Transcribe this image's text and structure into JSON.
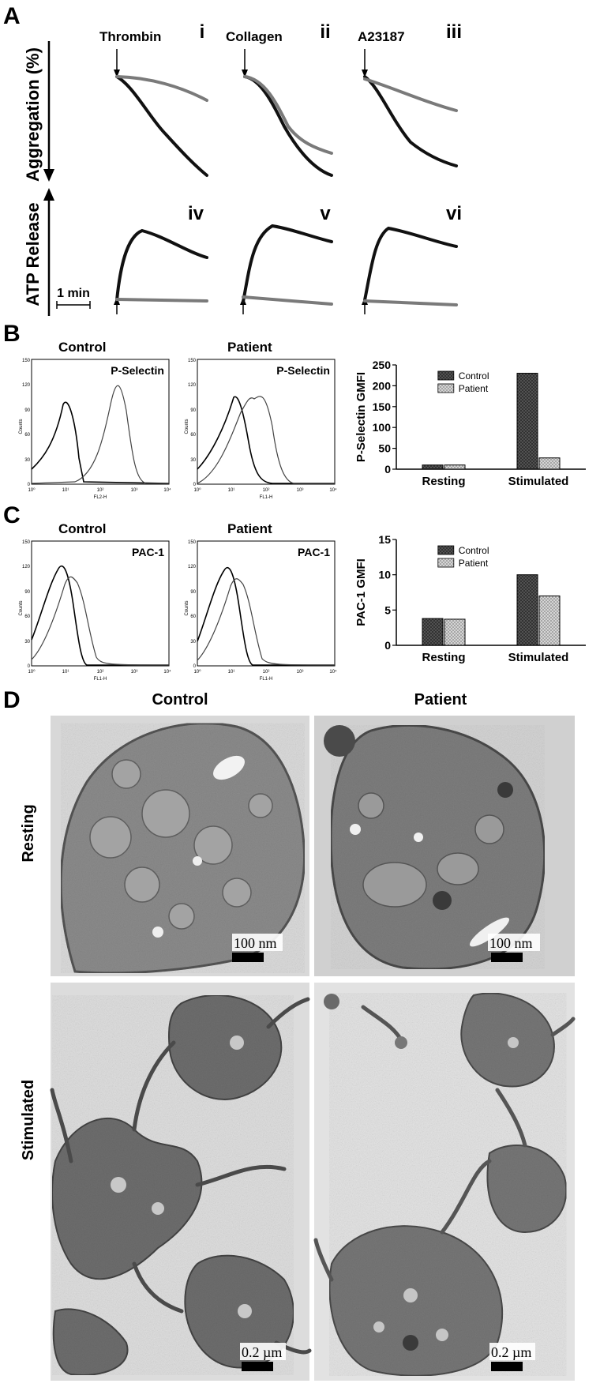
{
  "panel_a": {
    "label": "A",
    "aggregation_axis_label": "Aggregation (%)",
    "atp_axis_label": "ATP Release",
    "scale_label": "1 min",
    "subpanels": [
      {
        "numeral": "i",
        "agonist": "Thrombin"
      },
      {
        "numeral": "ii",
        "agonist": "Collagen"
      },
      {
        "numeral": "iii",
        "agonist": "A23187"
      },
      {
        "numeral": "iv",
        "agonist": ""
      },
      {
        "numeral": "v",
        "agonist": ""
      },
      {
        "numeral": "vi",
        "agonist": ""
      }
    ],
    "colors": {
      "control": "#111111",
      "patient": "#7a7a7a"
    }
  },
  "panel_b": {
    "label": "B",
    "histograms": [
      {
        "title": "Control",
        "marker": "P-Selectin",
        "xlabel": "FL2-H",
        "ylabel": "Counts"
      },
      {
        "title": "Patient",
        "marker": "P-Selectin",
        "xlabel": "FL1-H",
        "ylabel": "Counts"
      }
    ],
    "hist_yticks": [
      "0",
      "30",
      "60",
      "90",
      "120",
      "150"
    ],
    "hist_xticks": [
      "10⁰",
      "10¹",
      "10²",
      "10³",
      "10⁴"
    ]
  },
  "panel_c": {
    "label": "C",
    "histograms": [
      {
        "title": "Control",
        "marker": "PAC-1",
        "xlabel": "FL1-H",
        "ylabel": "Counts"
      },
      {
        "title": "Patient",
        "marker": "PAC-1",
        "xlabel": "FL1-H",
        "ylabel": "Counts"
      }
    ],
    "hist_yticks": [
      "0",
      "30",
      "60",
      "90",
      "120",
      "150"
    ],
    "hist_xticks": [
      "10⁰",
      "10¹",
      "10²",
      "10³",
      "10⁴"
    ]
  },
  "chart_data": [
    {
      "type": "bar",
      "panel": "B",
      "categories": [
        "Resting",
        "Stimulated"
      ],
      "series": [
        {
          "name": "Control",
          "values": [
            10,
            230
          ]
        },
        {
          "name": "Patient",
          "values": [
            10,
            27
          ]
        }
      ],
      "ylabel": "P-Selectin GMFI",
      "ylim": [
        0,
        250
      ],
      "yticks": [
        0,
        50,
        100,
        150,
        200,
        250
      ],
      "legend": "top-center"
    },
    {
      "type": "bar",
      "panel": "C",
      "categories": [
        "Resting",
        "Stimulated"
      ],
      "series": [
        {
          "name": "Control",
          "values": [
            3.8,
            10
          ]
        },
        {
          "name": "Patient",
          "values": [
            3.7,
            7
          ]
        }
      ],
      "ylabel": "PAC-1 GMFI",
      "ylim": [
        0,
        15
      ],
      "yticks": [
        0,
        5,
        10,
        15
      ],
      "legend": "top-center"
    }
  ],
  "panel_d": {
    "label": "D",
    "columns": [
      "Control",
      "Patient"
    ],
    "rows": [
      "Resting",
      "Stimulated"
    ],
    "scale_resting": "100 nm",
    "scale_stimulated": "0.2 µm"
  }
}
